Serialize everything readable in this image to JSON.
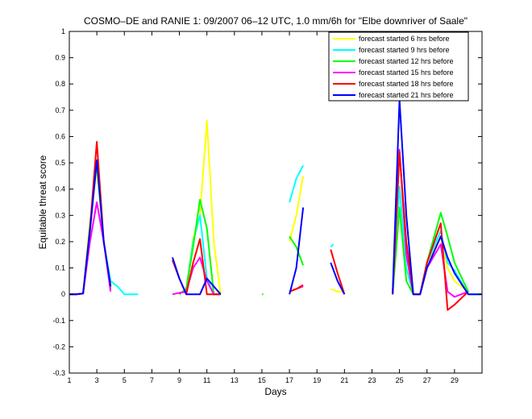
{
  "chart_data": {
    "type": "line",
    "title": "COSMO–DE and RANIE 1: 09/2007 06–12 UTC, 1.0 mm/6h for \"Elbe downriver of Saale\"",
    "xlabel": "Days",
    "ylabel": "Equitable threat score",
    "xlim": [
      1,
      31
    ],
    "ylim": [
      -0.3,
      1
    ],
    "xticks": [
      1,
      3,
      5,
      7,
      9,
      11,
      13,
      15,
      17,
      19,
      21,
      23,
      25,
      27,
      29
    ],
    "yticks": [
      -0.3,
      -0.2,
      -0.1,
      0,
      0.1,
      0.2,
      0.3,
      0.4,
      0.5,
      0.6,
      0.7,
      0.8,
      0.9,
      1
    ],
    "grid": false,
    "legend_position": "top-right",
    "series": [
      {
        "name": "forecast started 6 hrs before",
        "color": "#ffff00",
        "points": [
          [
            1,
            0
          ],
          [
            1.5,
            0
          ],
          [
            2,
            0.003
          ],
          [
            2.5,
            0.27
          ],
          [
            3,
            0.48
          ],
          [
            3.5,
            0.2
          ],
          [
            4,
            0.02
          ],
          null,
          [
            9,
            0
          ],
          [
            9.5,
            0.02
          ],
          [
            10,
            0.21
          ],
          [
            10.5,
            0.3
          ],
          [
            11,
            0.66
          ],
          [
            11.5,
            0.2
          ],
          [
            12,
            0
          ],
          null,
          [
            17,
            0.2
          ],
          [
            17.5,
            0.3
          ],
          [
            18,
            0.45
          ],
          null,
          [
            20,
            0.02
          ],
          [
            20.5,
            0.01
          ],
          [
            21,
            0.01
          ],
          null,
          [
            24.5,
            0
          ],
          [
            25,
            0.41
          ],
          [
            25.5,
            0.1
          ],
          [
            26,
            0
          ],
          [
            26.5,
            0
          ],
          [
            27,
            0.12
          ],
          [
            28,
            0.22
          ],
          [
            28.5,
            0.1
          ],
          [
            29,
            0.05
          ],
          [
            30,
            0.01
          ]
        ]
      },
      {
        "name": "forecast started 9 hrs before",
        "color": "#00ffff",
        "points": [
          [
            1,
            0
          ],
          [
            1.5,
            0
          ],
          [
            2,
            0.003
          ],
          [
            2.5,
            0.25
          ],
          [
            3,
            0.5
          ],
          [
            3.5,
            0.2
          ],
          [
            4,
            0.05
          ],
          [
            4.5,
            0.03
          ],
          [
            5,
            0
          ],
          [
            6,
            0
          ],
          null,
          [
            9,
            0
          ],
          [
            9.5,
            0.02
          ],
          [
            10,
            0.2
          ],
          [
            10.5,
            0.3
          ],
          [
            11,
            0.06
          ],
          [
            11.5,
            0
          ],
          [
            12,
            0
          ],
          null,
          [
            17,
            0.35
          ],
          [
            17.5,
            0.44
          ],
          [
            18,
            0.49
          ],
          null,
          [
            20,
            0.18
          ],
          [
            20.2,
            0.19
          ],
          null,
          [
            24.5,
            0
          ],
          [
            25,
            0.41
          ],
          [
            25.5,
            0.1
          ],
          [
            26,
            0
          ],
          [
            26.5,
            0
          ],
          [
            27,
            0.12
          ],
          [
            28,
            0.24
          ],
          [
            28.5,
            0.12
          ],
          [
            29,
            0.09
          ],
          [
            30,
            0
          ],
          [
            30.5,
            0
          ],
          [
            31,
            0
          ]
        ]
      },
      {
        "name": "forecast started 12 hrs before",
        "color": "#00ff00",
        "points": [
          [
            1,
            0
          ],
          [
            1.5,
            0
          ],
          [
            2,
            0.003
          ],
          [
            2.5,
            0.26
          ],
          [
            3,
            0.5
          ],
          [
            3.5,
            0.2
          ],
          [
            4,
            0.02
          ],
          null,
          [
            9,
            0
          ],
          [
            9.5,
            0.02
          ],
          [
            10,
            0.18
          ],
          [
            10.5,
            0.36
          ],
          [
            11,
            0.25
          ],
          [
            11.5,
            0
          ],
          [
            12,
            0
          ],
          null,
          [
            15,
            0
          ],
          [
            15.1,
            0
          ],
          null,
          [
            17,
            0.22
          ],
          [
            17.5,
            0.18
          ],
          [
            18,
            0.11
          ],
          null,
          [
            24.5,
            0
          ],
          [
            25,
            0.33
          ],
          [
            25.5,
            0.05
          ],
          [
            26,
            0
          ],
          [
            26.5,
            0
          ],
          [
            27,
            0.12
          ],
          [
            28,
            0.31
          ],
          [
            28.5,
            0.22
          ],
          [
            29,
            0.12
          ],
          [
            30,
            0.01
          ]
        ]
      },
      {
        "name": "forecast started 15 hrs before",
        "color": "#ff00ff",
        "points": [
          [
            1,
            0
          ],
          [
            1.5,
            0
          ],
          [
            2,
            0.003
          ],
          [
            2.5,
            0.2
          ],
          [
            3,
            0.35
          ],
          [
            3.5,
            0.2
          ],
          [
            4,
            0.01
          ],
          null,
          [
            8.5,
            0
          ],
          [
            9,
            0.005
          ],
          [
            9.5,
            0.01
          ],
          [
            10,
            0.1
          ],
          [
            10.5,
            0.14
          ],
          [
            11,
            0.05
          ],
          [
            11.5,
            0
          ],
          [
            12,
            0
          ],
          null,
          [
            17,
            0.01
          ],
          [
            17.5,
            0.02
          ],
          [
            18,
            0.03
          ],
          null,
          [
            24.5,
            0
          ],
          [
            25,
            0.55
          ],
          [
            25.5,
            0.15
          ],
          [
            26,
            0
          ],
          [
            26.5,
            0
          ],
          [
            27,
            0.1
          ],
          [
            28,
            0.19
          ],
          [
            28.5,
            0.01
          ],
          [
            29,
            -0.01
          ],
          [
            30,
            0.01
          ]
        ]
      },
      {
        "name": "forecast started 18 hrs before",
        "color": "#ff0000",
        "points": [
          [
            1,
            0
          ],
          [
            1.5,
            0
          ],
          [
            2,
            0.003
          ],
          [
            2.5,
            0.25
          ],
          [
            3,
            0.58
          ],
          [
            3.5,
            0.2
          ],
          [
            4,
            0.03
          ],
          null,
          [
            8.5,
            0.13
          ],
          [
            9,
            0.06
          ],
          [
            9.5,
            0
          ],
          [
            10,
            0.12
          ],
          [
            10.5,
            0.21
          ],
          [
            11,
            0
          ],
          [
            11.5,
            0
          ],
          [
            12,
            0
          ],
          null,
          [
            17,
            0.01
          ],
          [
            17.5,
            0.02
          ],
          [
            18,
            0.035
          ],
          null,
          [
            20,
            0.17
          ],
          [
            20.5,
            0.08
          ],
          [
            21,
            0
          ],
          null,
          [
            24.5,
            0
          ],
          [
            25,
            0.54
          ],
          [
            25.5,
            0.2
          ],
          [
            26,
            0
          ],
          [
            26.5,
            0
          ],
          [
            27,
            0.12
          ],
          [
            28,
            0.27
          ],
          [
            28.5,
            -0.06
          ],
          [
            29,
            -0.04
          ],
          [
            30,
            0.01
          ]
        ]
      },
      {
        "name": "forecast started 21 hrs before",
        "color": "#0000ff",
        "points": [
          [
            1,
            0
          ],
          [
            1.5,
            0
          ],
          [
            2,
            0.003
          ],
          [
            2.5,
            0.24
          ],
          [
            3,
            0.51
          ],
          [
            3.5,
            0.2
          ],
          [
            4,
            0.03
          ],
          null,
          [
            8.5,
            0.14
          ],
          [
            9,
            0.06
          ],
          [
            9.5,
            0
          ],
          [
            10,
            0
          ],
          [
            10.5,
            0
          ],
          [
            11,
            0.06
          ],
          [
            11.5,
            0.03
          ],
          [
            12,
            0
          ],
          null,
          [
            17,
            0
          ],
          [
            17.5,
            0.1
          ],
          [
            18,
            0.33
          ],
          null,
          [
            20,
            0.12
          ],
          [
            20.5,
            0.05
          ],
          [
            21,
            0
          ],
          null,
          [
            24.5,
            0
          ],
          [
            25,
            0.74
          ],
          [
            25.5,
            0.3
          ],
          [
            26,
            0
          ],
          [
            26.5,
            0
          ],
          [
            27,
            0.1
          ],
          [
            28,
            0.22
          ],
          [
            28.5,
            0.14
          ],
          [
            29,
            0.08
          ],
          [
            30,
            0
          ],
          [
            30.5,
            0
          ],
          [
            31,
            0
          ]
        ]
      }
    ]
  }
}
